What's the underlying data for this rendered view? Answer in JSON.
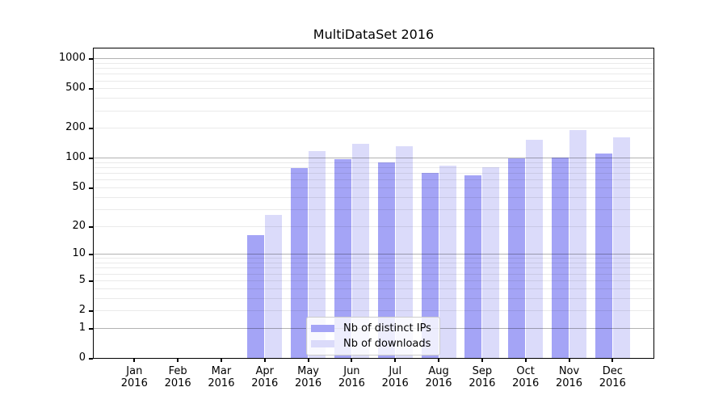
{
  "chart_data": {
    "type": "bar",
    "title": "MultiDataSet 2016",
    "categories": [
      "Jan 2016",
      "Feb 2016",
      "Mar 2016",
      "Apr 2016",
      "May 2016",
      "Jun 2016",
      "Jul 2016",
      "Aug 2016",
      "Sep 2016",
      "Oct 2016",
      "Nov 2016",
      "Dec 2016"
    ],
    "x_tick_months": [
      "Jan",
      "Feb",
      "Mar",
      "Apr",
      "May",
      "Jun",
      "Jul",
      "Aug",
      "Sep",
      "Oct",
      "Nov",
      "Dec"
    ],
    "x_tick_year": "2016",
    "series": [
      {
        "name": "Nb of distinct IPs",
        "color": "#a4a4f6",
        "values": [
          0,
          0,
          0,
          16,
          79,
          97,
          90,
          70,
          67,
          98,
          101,
          111
        ]
      },
      {
        "name": "Nb of downloads",
        "color": "#dbdbfa",
        "values": [
          0,
          0,
          0,
          26,
          118,
          138,
          130,
          84,
          80,
          152,
          189,
          162
        ]
      }
    ],
    "xlabel": "",
    "ylabel": "",
    "yscale": "log1p",
    "ylim": [
      0,
      1300
    ],
    "y_ticks": [
      0,
      1,
      2,
      5,
      10,
      20,
      50,
      100,
      200,
      500,
      1000
    ],
    "grid": "both",
    "legend_position": "lower center"
  },
  "colors": {
    "series_distinct_ips": "#a4a4f6",
    "series_downloads": "#dbdbfa",
    "grid_major": "#b2b2b2",
    "grid_minor": "#eaeaea",
    "axis": "#000000",
    "background": "#ffffff",
    "legend_border": "#cccccc"
  }
}
